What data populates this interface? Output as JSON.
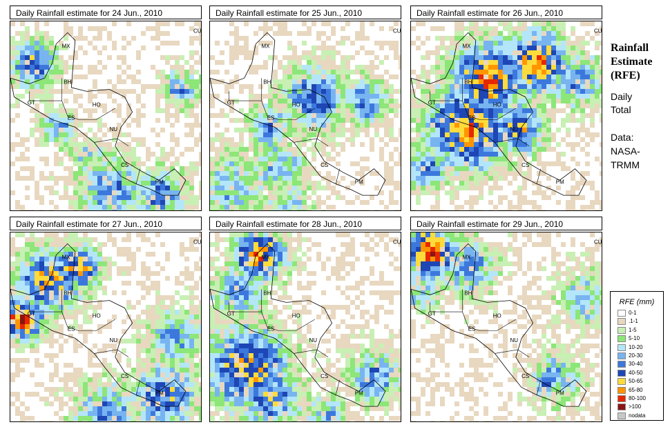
{
  "panels": [
    {
      "title": "Daily Rainfall estimate for  24 Jun., 2010",
      "seed": 11,
      "zones": [
        [
          0.12,
          0.22,
          0.09,
          7
        ],
        [
          0.88,
          0.35,
          0.07,
          6
        ],
        [
          0.52,
          0.87,
          0.12,
          6
        ],
        [
          0.25,
          0.55,
          0.07,
          5
        ],
        [
          0.78,
          0.9,
          0.1,
          6
        ],
        [
          0.4,
          0.7,
          0.08,
          4
        ]
      ]
    },
    {
      "title": "Daily Rainfall estimate for  25 Jun., 2010",
      "seed": 23,
      "zones": [
        [
          0.55,
          0.4,
          0.12,
          7
        ],
        [
          0.3,
          0.55,
          0.08,
          6
        ],
        [
          0.8,
          0.42,
          0.09,
          6
        ],
        [
          0.12,
          0.85,
          0.12,
          5
        ],
        [
          0.35,
          0.75,
          0.1,
          5
        ],
        [
          0.4,
          0.95,
          0.1,
          4
        ]
      ]
    },
    {
      "title": "Daily Rainfall estimate for  26 Jun., 2010",
      "seed": 37,
      "zones": [
        [
          0.4,
          0.3,
          0.14,
          9
        ],
        [
          0.65,
          0.22,
          0.12,
          9
        ],
        [
          0.3,
          0.55,
          0.16,
          9
        ],
        [
          0.55,
          0.55,
          0.1,
          8
        ],
        [
          0.08,
          0.75,
          0.08,
          6
        ],
        [
          0.85,
          0.3,
          0.1,
          6
        ]
      ]
    },
    {
      "title": "Daily Rainfall estimate for  27 Jun., 2010",
      "seed": 41,
      "zones": [
        [
          0.06,
          0.45,
          0.08,
          10
        ],
        [
          0.2,
          0.25,
          0.12,
          8
        ],
        [
          0.35,
          0.18,
          0.08,
          9
        ],
        [
          0.85,
          0.55,
          0.12,
          5
        ],
        [
          0.8,
          0.85,
          0.12,
          7
        ],
        [
          0.5,
          0.95,
          0.12,
          6
        ]
      ]
    },
    {
      "title": "Daily Rainfall estimate for  28 Jun., 2010",
      "seed": 53,
      "zones": [
        [
          0.25,
          0.12,
          0.1,
          9
        ],
        [
          0.15,
          0.3,
          0.1,
          6
        ],
        [
          0.2,
          0.7,
          0.16,
          8
        ],
        [
          0.3,
          0.85,
          0.12,
          7
        ],
        [
          0.85,
          0.75,
          0.1,
          6
        ],
        [
          0.6,
          0.95,
          0.08,
          5
        ]
      ]
    },
    {
      "title": "Daily Rainfall estimate for  29 Jun., 2010",
      "seed": 67,
      "zones": [
        [
          0.1,
          0.1,
          0.1,
          10
        ],
        [
          0.3,
          0.18,
          0.1,
          6
        ],
        [
          0.9,
          0.35,
          0.1,
          5
        ],
        [
          0.75,
          0.75,
          0.1,
          5
        ],
        [
          0.7,
          0.78,
          0.04,
          7
        ],
        [
          0.05,
          0.3,
          0.08,
          5
        ]
      ]
    }
  ],
  "countries": [
    "MX",
    "BH",
    "GT",
    "HO",
    "ES",
    "NU",
    "CS",
    "PM",
    "CU"
  ],
  "side": {
    "title_line1": "Rainfall",
    "title_line2": "Estimate",
    "title_line3": "(RFE)",
    "sub1": "Daily",
    "sub2": "Total",
    "sub3": "Data:",
    "sub4": "NASA-",
    "sub5": "TRMM"
  },
  "legend": {
    "title": "RFE (mm)",
    "items": [
      {
        "label": "0-1",
        "color": "#ffffff"
      },
      {
        "label": ".1-1",
        "color": "#e8d8c0"
      },
      {
        "label": "1-5",
        "color": "#c8f0b4"
      },
      {
        "label": "5-10",
        "color": "#8ce678"
      },
      {
        "label": "10-20",
        "color": "#b4e6fa"
      },
      {
        "label": "20-30",
        "color": "#78b4f0"
      },
      {
        "label": "30-40",
        "color": "#3c78dc"
      },
      {
        "label": "40-50",
        "color": "#1e46b4"
      },
      {
        "label": "50-65",
        "color": "#ffdc3c"
      },
      {
        "label": "65-80",
        "color": "#ff9600"
      },
      {
        "label": "80-100",
        "color": "#e62800"
      },
      {
        "label": ">100",
        "color": "#8c1414"
      },
      {
        "label": "nodata",
        "color": "#c8c8c8"
      }
    ]
  }
}
